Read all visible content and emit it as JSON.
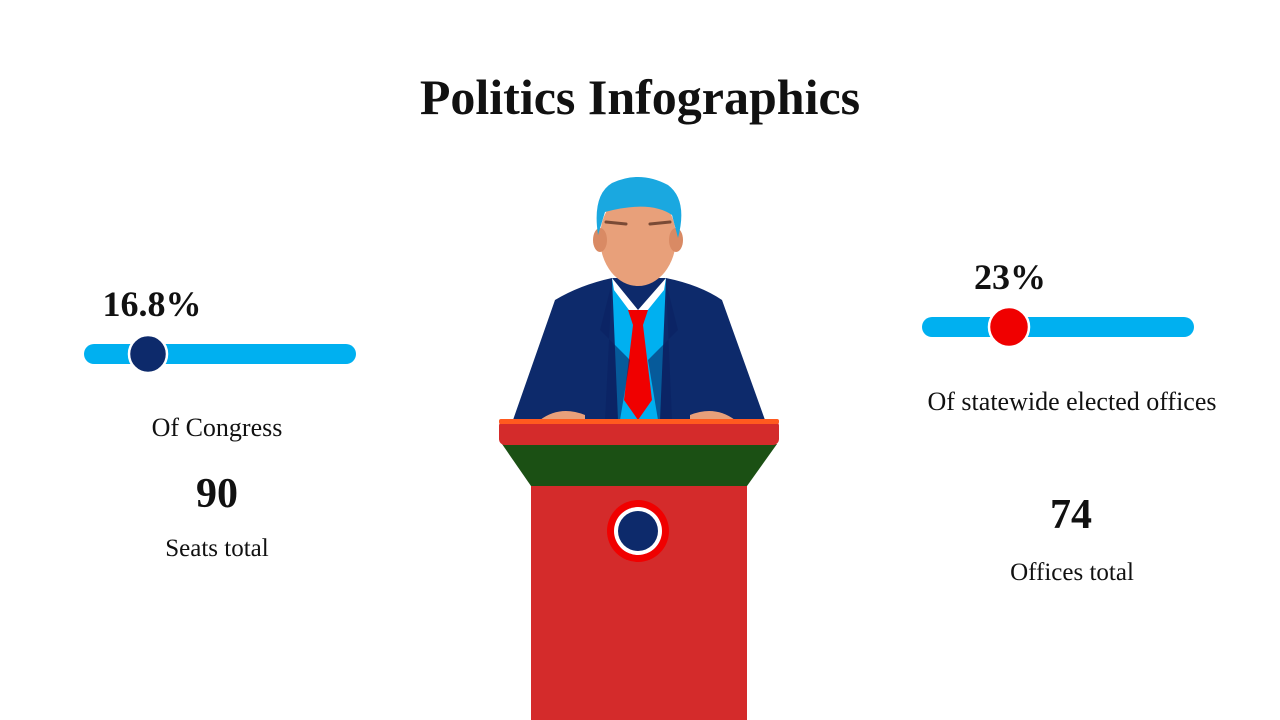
{
  "header": {
    "title": "Politics Infographics"
  },
  "stats": [
    {
      "percent": "16.8%",
      "description": "Of Congress",
      "number": "90",
      "caption": "Seats total"
    },
    {
      "percent": "23%",
      "description": "Of statewide elected offices",
      "number": "74",
      "caption": "Offices total"
    }
  ]
}
